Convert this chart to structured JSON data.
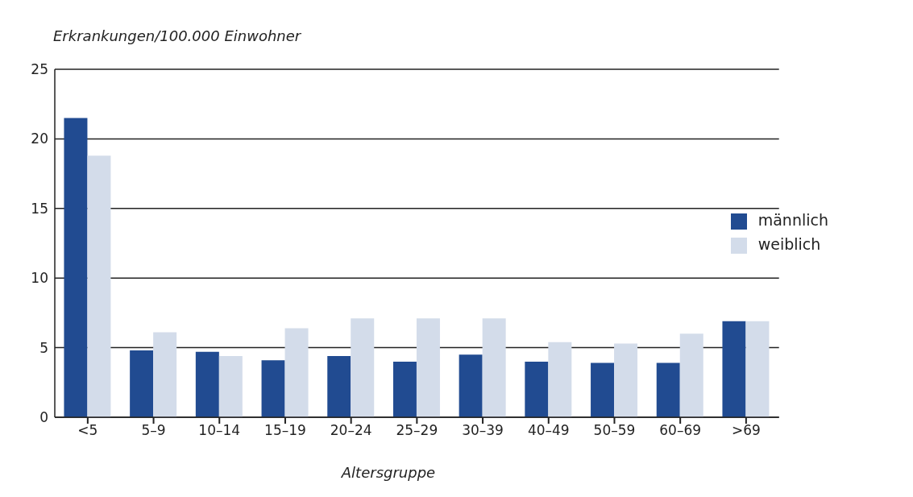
{
  "chart_data": {
    "type": "bar",
    "ylabel": "Erkrankungen/100.000 Einwohner",
    "xlabel": "Altersgruppe",
    "categories": [
      "<5",
      "5–9",
      "10–14",
      "15–19",
      "20–24",
      "25–29",
      "30–39",
      "40–49",
      "50–59",
      "60–69",
      ">69"
    ],
    "series": [
      {
        "name": "männlich",
        "color": "#214b91",
        "values": [
          21.5,
          4.8,
          4.7,
          4.1,
          4.4,
          4.0,
          4.5,
          4.0,
          3.9,
          3.9,
          6.9
        ]
      },
      {
        "name": "weiblich",
        "color": "#d3dcea",
        "values": [
          18.8,
          6.1,
          4.4,
          6.4,
          7.1,
          7.1,
          7.1,
          5.4,
          5.3,
          6.0,
          6.9
        ]
      }
    ],
    "ylim": [
      0,
      25
    ],
    "yticks": [
      0,
      5,
      10,
      15,
      20,
      25
    ],
    "grid": "y",
    "legend": "right"
  }
}
